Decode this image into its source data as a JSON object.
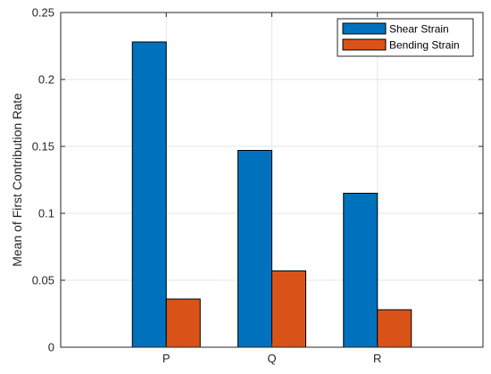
{
  "chart_data": {
    "type": "bar",
    "title": "",
    "xlabel": "",
    "ylabel": "Mean of First Contribution Rate",
    "categories": [
      "P",
      "Q",
      "R"
    ],
    "series": [
      {
        "name": "Shear Strain",
        "color": "#0072BD",
        "values": [
          0.228,
          0.147,
          0.115
        ]
      },
      {
        "name": "Bending Strain",
        "color": "#D95319",
        "values": [
          0.036,
          0.057,
          0.028
        ]
      }
    ],
    "ylim": [
      0,
      0.25
    ],
    "yticks": [
      0,
      0.05,
      0.1,
      0.15,
      0.2,
      0.25
    ],
    "ytick_labels": [
      "0",
      "0.05",
      "0.1",
      "0.15",
      "0.2",
      "0.25"
    ],
    "grid": true,
    "legend_position": "top-right"
  }
}
